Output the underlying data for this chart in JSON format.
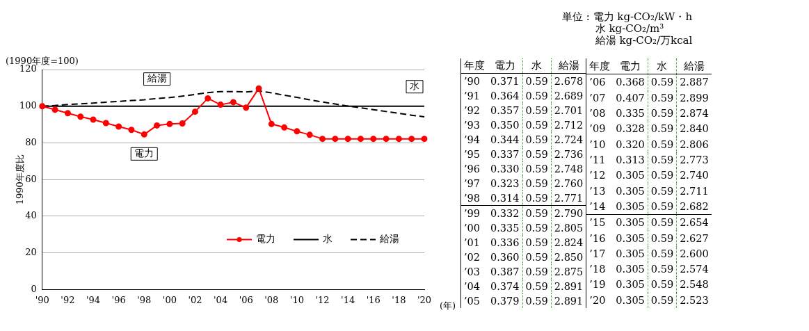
{
  "chart_data": [
    {
      "type": "line",
      "ylabel": "1990年度比",
      "xlabel": "(年)",
      "annotations": [
        "(1990年度=100)"
      ],
      "categories": [
        "'90",
        null,
        "'92",
        null,
        "'94",
        null,
        "'96",
        null,
        "'98",
        null,
        "'00",
        null,
        "'02",
        null,
        "'04",
        null,
        "'06",
        null,
        "'08",
        null,
        "'10",
        null,
        "'12",
        null,
        "'14",
        null,
        "'16",
        null,
        "'18",
        null,
        "'20"
      ],
      "series": [
        {
          "name": "電力",
          "color": "#ff0000",
          "marker": "circle",
          "line_style": "solid",
          "values": [
            100,
            98.1,
            96.2,
            94.3,
            92.7,
            90.8,
            88.9,
            87.1,
            84.6,
            89.5,
            90.3,
            90.6,
            97.0,
            104.3,
            100.8,
            102.2,
            99.2,
            109.7,
            90.3,
            88.4,
            86.3,
            84.4,
            82.2,
            82.2,
            82.2,
            82.2,
            82.2,
            82.2,
            82.2,
            82.2,
            82.2
          ]
        },
        {
          "name": "水",
          "color": "#000000",
          "marker": "none",
          "line_style": "solid",
          "values": [
            100,
            100,
            100,
            100,
            100,
            100,
            100,
            100,
            100,
            100,
            100,
            100,
            100,
            100,
            100,
            100,
            100,
            100,
            100,
            100,
            100,
            100,
            100,
            100,
            100,
            100,
            100,
            100,
            100,
            100,
            100
          ]
        },
        {
          "name": "給湯",
          "color": "#000000",
          "marker": "none",
          "line_style": "dashed",
          "values": [
            100,
            100.4,
            100.9,
            101.3,
            101.7,
            102.2,
            102.6,
            103.1,
            103.5,
            104.2,
            104.7,
            105.5,
            106.4,
            107.4,
            108.0,
            108.0,
            107.8,
            108.3,
            107.3,
            106.0,
            104.8,
            103.5,
            102.3,
            101.2,
            100.1,
            99.1,
            98.1,
            97.1,
            96.1,
            95.1,
            94.2
          ]
        }
      ],
      "ylim": [
        0,
        120
      ],
      "yticks": [
        0,
        20,
        40,
        60,
        80,
        100,
        120
      ],
      "grid": "y",
      "legend": "bottom right"
    },
    {
      "type": "heatmap",
      "ylabel": "年度",
      "annotations": [
        "単位 : 電力 kg-CO₂/kW・h",
        "水 kg-CO₂/m³",
        "給湯 kg-CO₂/万kcal"
      ],
      "categories": [
        "電力",
        "水",
        "給湯"
      ],
      "y_categories": [
        "’90",
        "’91",
        "’92",
        "’93",
        "’94",
        "’95",
        "’96",
        "’97",
        "’98",
        "’99",
        "’00",
        "’01",
        "’02",
        "’03",
        "’04",
        "’05"
      ],
      "cells": [
        [
          0.371,
          0.59,
          2.678
        ],
        [
          0.364,
          0.59,
          2.689
        ],
        [
          0.357,
          0.59,
          2.701
        ],
        [
          0.35,
          0.59,
          2.712
        ],
        [
          0.344,
          0.59,
          2.724
        ],
        [
          0.337,
          0.59,
          2.736
        ],
        [
          0.33,
          0.59,
          2.748
        ],
        [
          0.323,
          0.59,
          2.76
        ],
        [
          0.314,
          0.59,
          2.771
        ],
        [
          0.332,
          0.59,
          2.79
        ],
        [
          0.335,
          0.59,
          2.805
        ],
        [
          0.336,
          0.59,
          2.824
        ],
        [
          0.36,
          0.59,
          2.85
        ],
        [
          0.387,
          0.59,
          2.875
        ],
        [
          0.374,
          0.59,
          2.891
        ],
        [
          0.379,
          0.59,
          2.891
        ]
      ],
      "cell_labels": [
        [
          "0.371",
          "0.59",
          "2.678"
        ],
        [
          "0.364",
          "0.59",
          "2.689"
        ],
        [
          "0.357",
          "0.59",
          "2.701"
        ],
        [
          "0.350",
          "0.59",
          "2.712"
        ],
        [
          "0.344",
          "0.59",
          "2.724"
        ],
        [
          "0.337",
          "0.59",
          "2.736"
        ],
        [
          "0.330",
          "0.59",
          "2.748"
        ],
        [
          "0.323",
          "0.59",
          "2.760"
        ],
        [
          "0.314",
          "0.59",
          "2.771"
        ],
        [
          "0.332",
          "0.59",
          "2.790"
        ],
        [
          "0.335",
          "0.59",
          "2.805"
        ],
        [
          "0.336",
          "0.59",
          "2.824"
        ],
        [
          "0.360",
          "0.59",
          "2.850"
        ],
        [
          "0.387",
          "0.59",
          "2.875"
        ],
        [
          "0.374",
          "0.59",
          "2.891"
        ],
        [
          "0.379",
          "0.59",
          "2.891"
        ]
      ]
    },
    {
      "type": "heatmap",
      "ylabel": "年度",
      "categories": [
        "電力",
        "水",
        "給湯"
      ],
      "y_categories": [
        "’06",
        "’07",
        "’08",
        "’09",
        "’10",
        "’11",
        "’12",
        "’13",
        "’14",
        "’15",
        "’16",
        "’17",
        "’18",
        "’19",
        "’20"
      ],
      "cells": [
        [
          0.368,
          0.59,
          2.887
        ],
        [
          0.407,
          0.59,
          2.899
        ],
        [
          0.335,
          0.59,
          2.874
        ],
        [
          0.328,
          0.59,
          2.84
        ],
        [
          0.32,
          0.59,
          2.806
        ],
        [
          0.313,
          0.59,
          2.773
        ],
        [
          0.305,
          0.59,
          2.74
        ],
        [
          0.305,
          0.59,
          2.711
        ],
        [
          0.305,
          0.59,
          2.682
        ],
        [
          0.305,
          0.59,
          2.654
        ],
        [
          0.305,
          0.59,
          2.627
        ],
        [
          0.305,
          0.59,
          2.6
        ],
        [
          0.305,
          0.59,
          2.574
        ],
        [
          0.305,
          0.59,
          2.548
        ],
        [
          0.305,
          0.59,
          2.523
        ]
      ],
      "cell_labels": [
        [
          "0.368",
          "0.59",
          "2.887"
        ],
        [
          "0.407",
          "0.59",
          "2.899"
        ],
        [
          "0.335",
          "0.59",
          "2.874"
        ],
        [
          "0.328",
          "0.59",
          "2.840"
        ],
        [
          "0.320",
          "0.59",
          "2.806"
        ],
        [
          "0.313",
          "0.59",
          "2.773"
        ],
        [
          "0.305",
          "0.59",
          "2.740"
        ],
        [
          "0.305",
          "0.59",
          "2.711"
        ],
        [
          "0.305",
          "0.59",
          "2.682"
        ],
        [
          "0.305",
          "0.59",
          "2.654"
        ],
        [
          "0.305",
          "0.59",
          "2.627"
        ],
        [
          "0.305",
          "0.59",
          "2.600"
        ],
        [
          "0.305",
          "0.59",
          "2.574"
        ],
        [
          "0.305",
          "0.59",
          "2.548"
        ],
        [
          "0.305",
          "0.59",
          "2.523"
        ]
      ]
    }
  ]
}
